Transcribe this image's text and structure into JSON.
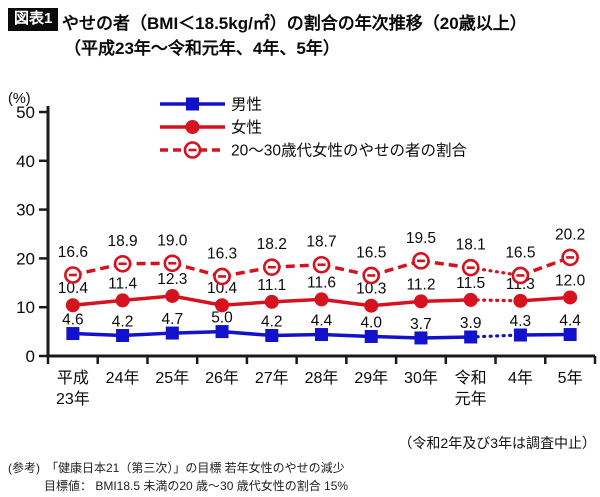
{
  "title": {
    "badge": "図表1",
    "line1": "やせの者（BMI＜18.5kg/㎡）の割合の年次推移（20歳以上）",
    "line2": "（平成23年～令和元年、4年、5年）"
  },
  "notes": {
    "gap_note": "（令和2年及び3年は調査中止）",
    "reference_line1": "(参考)　「健康日本21（第三次）」の目標 若年女性のやせの減少",
    "reference_line2": "目標値： BMI18.5 未満の20 歳～30 歳代女性の割合 15%"
  },
  "chart_data": {
    "type": "line",
    "title": "やせの者（BMI＜18.5kg/㎡）の割合の年次推移（20歳以上）（平成23年～令和元年、4年、5年）",
    "unit_label": "(%)",
    "ylim": [
      0,
      50
    ],
    "yticks": [
      0,
      10,
      20,
      30,
      40,
      50
    ],
    "grid": false,
    "legend_position": "top",
    "categories": [
      "平成\n23年",
      "24年",
      "25年",
      "26年",
      "27年",
      "28年",
      "29年",
      "30年",
      "令和\n元年",
      "4年",
      "5年"
    ],
    "gap_between_indices": [
      8,
      9
    ],
    "series": [
      {
        "name": "男性",
        "color": "#1212cc",
        "marker": "square",
        "line": "solid",
        "values": [
          4.6,
          4.2,
          4.7,
          5.0,
          4.2,
          4.4,
          4.0,
          3.7,
          3.9,
          4.3,
          4.4
        ]
      },
      {
        "name": "女性",
        "color": "#d6121f",
        "marker": "circle",
        "line": "solid",
        "values": [
          10.4,
          11.4,
          12.3,
          10.4,
          11.1,
          11.6,
          10.3,
          11.2,
          11.5,
          11.3,
          12.0
        ]
      },
      {
        "name": "20～30歳代女性のやせの者の割合",
        "color": "#d6121f",
        "marker": "open-circle",
        "line": "dashed",
        "values": [
          16.6,
          18.9,
          19.0,
          16.3,
          18.2,
          18.7,
          16.5,
          19.5,
          18.1,
          16.5,
          20.2
        ]
      }
    ]
  }
}
